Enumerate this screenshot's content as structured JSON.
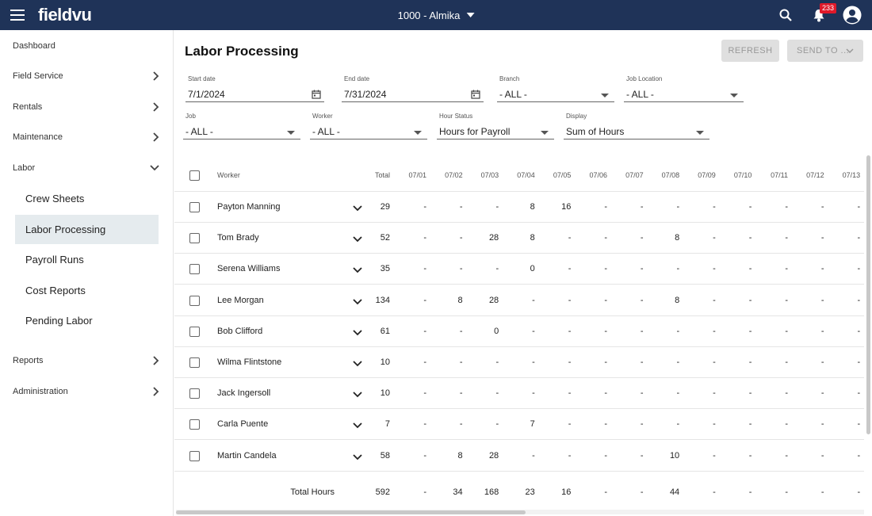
{
  "app": {
    "logo": "fieldvu",
    "company": "1000 - Almika",
    "notification_count": "233"
  },
  "sidebar": {
    "items": [
      {
        "label": "Dashboard"
      },
      {
        "label": "Field Service"
      },
      {
        "label": "Rentals"
      },
      {
        "label": "Maintenance"
      },
      {
        "label": "Labor"
      },
      {
        "label": "Reports"
      },
      {
        "label": "Administration"
      }
    ],
    "labor_sub": [
      {
        "label": "Crew Sheets"
      },
      {
        "label": "Labor Processing"
      },
      {
        "label": "Payroll Runs"
      },
      {
        "label": "Cost Reports"
      },
      {
        "label": "Pending Labor"
      }
    ]
  },
  "page": {
    "title": "Labor Processing",
    "refresh_label": "REFRESH",
    "send_to_label": "SEND TO ..."
  },
  "filters": {
    "start_date": {
      "label": "Start date",
      "value": "7/1/2024"
    },
    "end_date": {
      "label": "End date",
      "value": "7/31/2024"
    },
    "branch": {
      "label": "Branch",
      "value": "- ALL -"
    },
    "job_location": {
      "label": "Job Location",
      "value": "- ALL -"
    },
    "job": {
      "label": "Job",
      "value": "- ALL -"
    },
    "worker": {
      "label": "Worker",
      "value": "- ALL -"
    },
    "hour_status": {
      "label": "Hour Status",
      "value": "Hours for Payroll"
    },
    "display": {
      "label": "Display",
      "value": "Sum of Hours"
    }
  },
  "table": {
    "worker_header": "Worker",
    "total_header": "Total",
    "dates": [
      "07/01",
      "07/02",
      "07/03",
      "07/04",
      "07/05",
      "07/06",
      "07/07",
      "07/08",
      "07/09",
      "07/10",
      "07/11",
      "07/12",
      "07/13"
    ],
    "rows": [
      {
        "worker": "Payton Manning",
        "total": "29",
        "days": [
          "-",
          "-",
          "-",
          "8",
          "16",
          "-",
          "-",
          "-",
          "-",
          "-",
          "-",
          "-",
          "-"
        ]
      },
      {
        "worker": "Tom Brady",
        "total": "52",
        "days": [
          "-",
          "-",
          "28",
          "8",
          "-",
          "-",
          "-",
          "8",
          "-",
          "-",
          "-",
          "-",
          "-"
        ]
      },
      {
        "worker": "Serena Williams",
        "total": "35",
        "days": [
          "-",
          "-",
          "-",
          "0",
          "-",
          "-",
          "-",
          "-",
          "-",
          "-",
          "-",
          "-",
          "-"
        ]
      },
      {
        "worker": "Lee Morgan",
        "total": "134",
        "days": [
          "-",
          "8",
          "28",
          "-",
          "-",
          "-",
          "-",
          "8",
          "-",
          "-",
          "-",
          "-",
          "-"
        ]
      },
      {
        "worker": "Bob Clifford",
        "total": "61",
        "days": [
          "-",
          "-",
          "0",
          "-",
          "-",
          "-",
          "-",
          "-",
          "-",
          "-",
          "-",
          "-",
          "-"
        ]
      },
      {
        "worker": "Wilma Flintstone",
        "total": "10",
        "days": [
          "-",
          "-",
          "-",
          "-",
          "-",
          "-",
          "-",
          "-",
          "-",
          "-",
          "-",
          "-",
          "-"
        ]
      },
      {
        "worker": "Jack Ingersoll",
        "total": "10",
        "days": [
          "-",
          "-",
          "-",
          "-",
          "-",
          "-",
          "-",
          "-",
          "-",
          "-",
          "-",
          "-",
          "-"
        ]
      },
      {
        "worker": "Carla Puente",
        "total": "7",
        "days": [
          "-",
          "-",
          "-",
          "7",
          "-",
          "-",
          "-",
          "-",
          "-",
          "-",
          "-",
          "-",
          "-"
        ]
      },
      {
        "worker": "Martin Candela",
        "total": "58",
        "days": [
          "-",
          "8",
          "28",
          "-",
          "-",
          "-",
          "-",
          "10",
          "-",
          "-",
          "-",
          "-",
          "-"
        ]
      }
    ],
    "totals": {
      "label": "Total Hours",
      "total": "592",
      "days": [
        "-",
        "34",
        "168",
        "23",
        "16",
        "-",
        "-",
        "44",
        "-",
        "-",
        "-",
        "-",
        "-"
      ]
    }
  },
  "colors": {
    "topbar": "#1f3358",
    "badge": "#e0192a",
    "active_nav": "#e5ebee"
  }
}
